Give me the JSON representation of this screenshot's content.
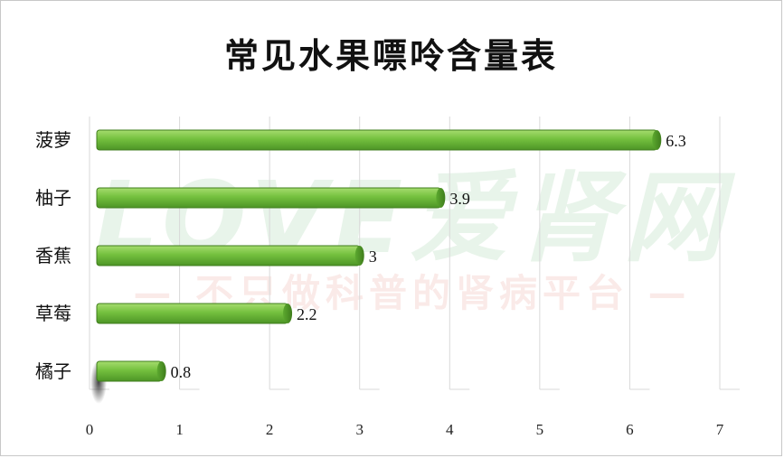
{
  "chart_data": {
    "type": "bar",
    "orientation": "horizontal",
    "title": "常见水果嘌呤含量表",
    "categories": [
      "菠萝",
      "柚子",
      "香蕉",
      "草莓",
      "橘子"
    ],
    "values": [
      6.3,
      3.9,
      3,
      2.2,
      0.8
    ],
    "value_labels": [
      "6.3",
      "3.9",
      "3",
      "2.2",
      "0.8"
    ],
    "xlim": [
      0,
      7
    ],
    "x_ticks": [
      "0",
      "1",
      "2",
      "3",
      "4",
      "5",
      "6",
      "7"
    ],
    "xlabel": "",
    "ylabel": "",
    "grid": true,
    "legend": "none",
    "bar_color": "#6bb83a",
    "bar_edge_color": "#3f7d1c"
  },
  "watermark": {
    "main": "LOVE爱肾网",
    "sub": "— 不只做科普的肾病平台 —"
  }
}
